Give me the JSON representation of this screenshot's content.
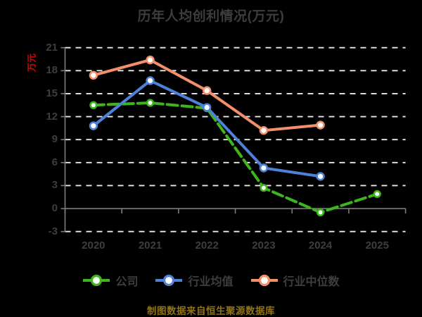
{
  "title": "历年人均创利情况(万元)",
  "y_axis_name": "万元",
  "footer": "制图数据来自恒生聚源数据库",
  "colors": {
    "background": "#000000",
    "title_text": "#3d3d3d",
    "axis_text": "#3e3e3e",
    "axis_line": "#7d7d7d",
    "gridline": "#ebebeb",
    "y_axis_name_text": "#e10000",
    "footer_text": "#927312",
    "company": "#3eb51e",
    "industry_mean": "#4e82d9",
    "industry_median": "#f3906b"
  },
  "chart_data": {
    "type": "line",
    "title": "历年人均创利情况(万元)",
    "ylabel": "万元",
    "x": [
      "2020",
      "2021",
      "2022",
      "2023",
      "2024",
      "2025"
    ],
    "series": [
      {
        "name": "公司",
        "key": "company",
        "color": "#3eb51e",
        "line_style": "dashed",
        "values": [
          13.5,
          13.8,
          13.1,
          2.7,
          -0.5,
          1.9
        ]
      },
      {
        "name": "行业均值",
        "key": "industry-mean",
        "color": "#4e82d9",
        "line_style": "solid",
        "values": [
          10.8,
          16.7,
          13.2,
          5.3,
          4.2,
          null
        ]
      },
      {
        "name": "行业中位数",
        "key": "industry-median",
        "color": "#f3906b",
        "line_style": "solid",
        "values": [
          17.4,
          19.4,
          15.4,
          10.2,
          10.9,
          null
        ]
      }
    ],
    "y_ticks": [
      21,
      18,
      15,
      12,
      9,
      6,
      3,
      0,
      -3
    ],
    "ylim": [
      -3,
      21
    ],
    "grid": "horizontal-dashed-white, solid zero axis line",
    "legend_position": "bottom",
    "marker": "circle-white-fill-colored-ring"
  }
}
